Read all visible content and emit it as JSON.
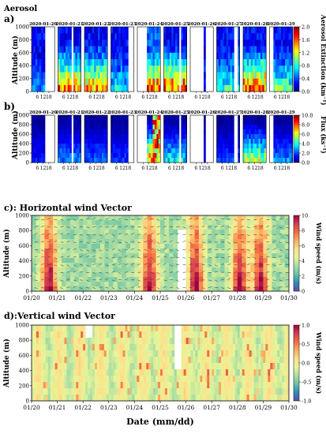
{
  "figure": {
    "header": "Aerosol",
    "colors": {
      "jet": [
        "#00007f",
        "#0000ff",
        "#007fff",
        "#00ffff",
        "#7fff7f",
        "#ffff00",
        "#ff7f00",
        "#ff0000",
        "#7f0000"
      ],
      "wind": [
        "#5e4fa2",
        "#3288bd",
        "#66c2a5",
        "#abdda4",
        "#e6f598",
        "#fee08b",
        "#fdae61",
        "#f46d43",
        "#d53e4f",
        "#9e0142"
      ]
    }
  },
  "chart_data": [
    {
      "panel": "a)",
      "type": "heatmap",
      "ylabel": "Altitude (m)",
      "yticks": [
        "0",
        "200",
        "400",
        "600",
        "800",
        "1000"
      ],
      "ylim": [
        0,
        1000
      ],
      "day_xticks": [
        "6",
        "12",
        "18"
      ],
      "days": [
        "2020-01-20",
        "2020-01-21",
        "2020-01-22",
        "2020-01-23",
        "2020-01-24",
        "2020-01-25",
        "2020-01-26",
        "2020-01-27",
        "2020-01-28",
        "2020-01-29"
      ],
      "colorbar": {
        "label": "Aerosol Extinction (km⁻¹)",
        "ticks": [
          "0.0",
          "0.4",
          "0.8",
          "1.2",
          "1.6",
          "2.0"
        ],
        "range": [
          0,
          2.0
        ]
      },
      "description_values": "per-day hourly extinction profiles; high values (>1.6) near surface on 01-21, 01-22, 01-24, 01-25, 01-28"
    },
    {
      "panel": "b)",
      "type": "heatmap",
      "ylabel": "Altitude (m)",
      "yticks": [
        "0",
        "200",
        "400",
        "600",
        "800",
        "1000"
      ],
      "ylim": [
        0,
        1000
      ],
      "day_xticks": [
        "6",
        "12",
        "18"
      ],
      "days": [
        "2020-01-20",
        "2020-01-21",
        "2020-01-22",
        "2020-01-23",
        "2020-01-24",
        "2020-01-25",
        "2020-01-26",
        "2020-01-27",
        "2020-01-28",
        "2020-01-29"
      ],
      "colorbar": {
        "label": "Flux (ks⁻¹)",
        "ticks": [
          "0.0",
          "2.0",
          "4.0",
          "6.0",
          "8.0",
          "10.0"
        ],
        "range": [
          0,
          10.0
        ]
      }
    },
    {
      "panel": "c): Horizontal wind Vector",
      "type": "heatmap",
      "ylabel": "Altitude (m)",
      "yticks": [
        "0",
        "200",
        "400",
        "600",
        "800",
        "1000"
      ],
      "ylim": [
        0,
        1000
      ],
      "xticks": [
        "01/20",
        "01/21",
        "01/22",
        "01/23",
        "01/24",
        "01/25",
        "01/26",
        "01/27",
        "01/28",
        "01/29",
        "01/30"
      ],
      "colorbar": {
        "label": "Wind speed (m/s)",
        "ticks": [
          "0",
          "2",
          "4",
          "6",
          "8",
          "10"
        ],
        "range": [
          0,
          10
        ]
      }
    },
    {
      "panel": "d):Vertical wind Vector",
      "type": "heatmap",
      "ylabel": "Altitude (m)",
      "yticks": [
        "0",
        "200",
        "400",
        "600",
        "800",
        "1000"
      ],
      "ylim": [
        0,
        1000
      ],
      "xticks": [
        "01/20",
        "01/21",
        "01/22",
        "01/23",
        "01/24",
        "01/25",
        "01/26",
        "01/27",
        "01/28",
        "01/29",
        "01/30"
      ],
      "xlabel": "Date (mm/dd)",
      "colorbar": {
        "label": "Wind speed (m/s)",
        "ticks": [
          "-1.0",
          "-0.5",
          "0.0",
          "0.5",
          "1.0"
        ],
        "range": [
          -1.0,
          1.0
        ]
      }
    }
  ]
}
